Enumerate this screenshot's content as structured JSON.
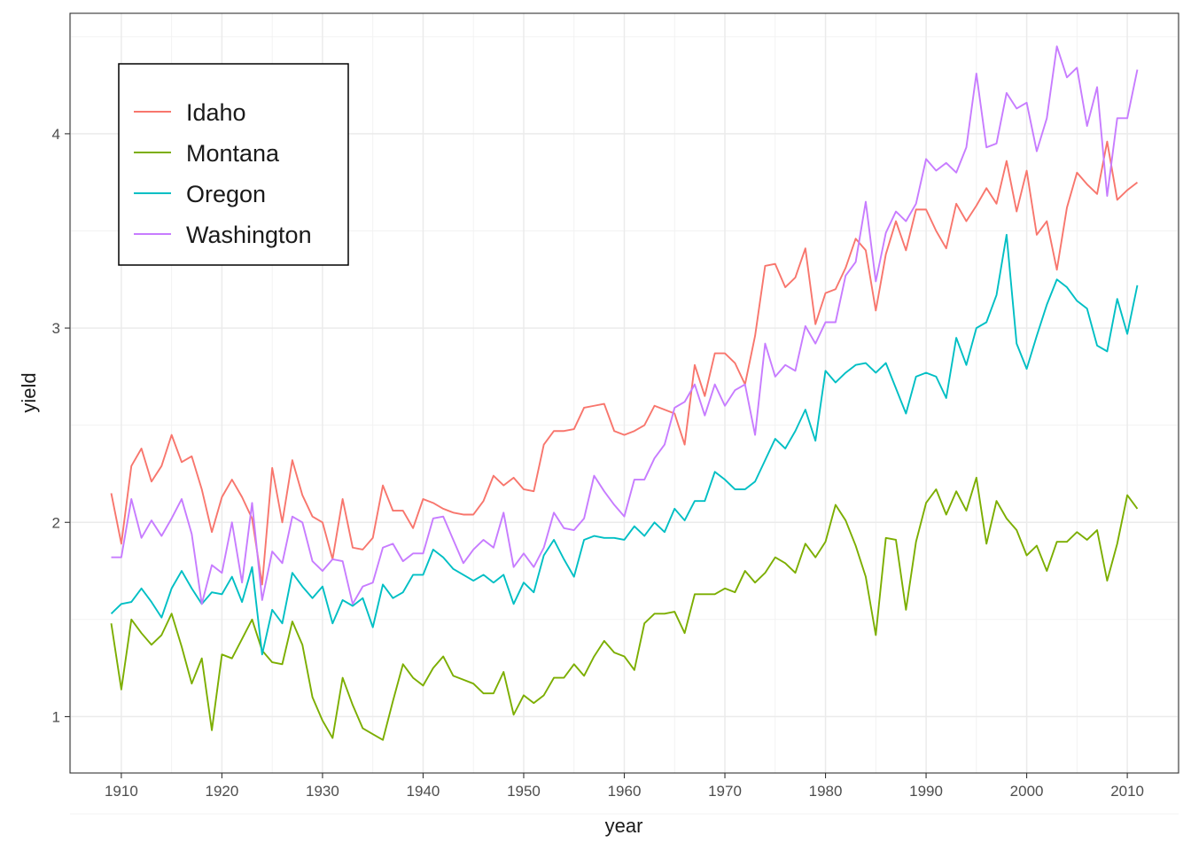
{
  "chart_data": {
    "type": "line",
    "xlabel": "year",
    "ylabel": "yield",
    "xlim": [
      1904.9,
      2015.1
    ],
    "ylim": [
      0.71,
      4.62
    ],
    "x_ticks": [
      1910,
      1920,
      1930,
      1940,
      1950,
      1960,
      1970,
      1980,
      1990,
      2000,
      2010
    ],
    "y_ticks": [
      1,
      2,
      3,
      4
    ],
    "grid": true,
    "legend_position": "top-left",
    "x": [
      1909,
      1910,
      1911,
      1912,
      1913,
      1914,
      1915,
      1916,
      1917,
      1918,
      1919,
      1920,
      1921,
      1922,
      1923,
      1924,
      1925,
      1926,
      1927,
      1928,
      1929,
      1930,
      1931,
      1932,
      1933,
      1934,
      1935,
      1936,
      1937,
      1938,
      1939,
      1940,
      1941,
      1942,
      1943,
      1944,
      1945,
      1946,
      1947,
      1948,
      1949,
      1950,
      1951,
      1952,
      1953,
      1954,
      1955,
      1956,
      1957,
      1958,
      1959,
      1960,
      1961,
      1962,
      1963,
      1964,
      1965,
      1966,
      1967,
      1968,
      1969,
      1970,
      1971,
      1972,
      1973,
      1974,
      1975,
      1976,
      1977,
      1978,
      1979,
      1980,
      1981,
      1982,
      1983,
      1984,
      1985,
      1986,
      1987,
      1988,
      1989,
      1990,
      1991,
      1992,
      1993,
      1994,
      1995,
      1996,
      1997,
      1998,
      1999,
      2000,
      2001,
      2002,
      2003,
      2004,
      2005,
      2006,
      2007,
      2008,
      2009,
      2010,
      2011
    ],
    "series": [
      {
        "name": "Idaho",
        "color": "#F8766D",
        "values": [
          2.15,
          1.89,
          2.29,
          2.38,
          2.21,
          2.29,
          2.45,
          2.31,
          2.34,
          2.17,
          1.95,
          2.13,
          2.22,
          2.13,
          2.02,
          1.68,
          2.28,
          2.0,
          2.32,
          2.14,
          2.03,
          2.0,
          1.81,
          2.12,
          1.87,
          1.86,
          1.92,
          2.19,
          2.06,
          2.06,
          1.97,
          2.12,
          2.1,
          2.07,
          2.05,
          2.04,
          2.04,
          2.11,
          2.24,
          2.19,
          2.23,
          2.17,
          2.16,
          2.4,
          2.47,
          2.47,
          2.48,
          2.59,
          2.6,
          2.61,
          2.47,
          2.45,
          2.47,
          2.5,
          2.6,
          2.58,
          2.56,
          2.4,
          2.81,
          2.65,
          2.87,
          2.87,
          2.82,
          2.71,
          2.96,
          3.32,
          3.33,
          3.21,
          3.26,
          3.41,
          3.02,
          3.18,
          3.2,
          3.31,
          3.46,
          3.4,
          3.09,
          3.38,
          3.55,
          3.4,
          3.61,
          3.61,
          3.5,
          3.41,
          3.64,
          3.55,
          3.63,
          3.72,
          3.64,
          3.86,
          3.6,
          3.81,
          3.48,
          3.55,
          3.3,
          3.62,
          3.8,
          3.74,
          3.69,
          3.96,
          3.66,
          3.71,
          3.75
        ]
      },
      {
        "name": "Montana",
        "color": "#7CAE00",
        "values": [
          1.48,
          1.14,
          1.5,
          1.43,
          1.37,
          1.42,
          1.53,
          1.36,
          1.17,
          1.3,
          0.93,
          1.32,
          1.3,
          1.4,
          1.5,
          1.34,
          1.28,
          1.27,
          1.49,
          1.37,
          1.1,
          0.98,
          0.89,
          1.2,
          1.06,
          0.94,
          0.91,
          0.88,
          1.08,
          1.27,
          1.2,
          1.16,
          1.25,
          1.31,
          1.21,
          1.19,
          1.17,
          1.12,
          1.12,
          1.23,
          1.01,
          1.11,
          1.07,
          1.11,
          1.2,
          1.2,
          1.27,
          1.21,
          1.31,
          1.39,
          1.33,
          1.31,
          1.24,
          1.48,
          1.53,
          1.53,
          1.54,
          1.43,
          1.63,
          1.63,
          1.63,
          1.66,
          1.64,
          1.75,
          1.69,
          1.74,
          1.82,
          1.79,
          1.74,
          1.89,
          1.82,
          1.9,
          2.09,
          2.01,
          1.88,
          1.72,
          1.42,
          1.92,
          1.91,
          1.55,
          1.9,
          2.1,
          2.17,
          2.04,
          2.16,
          2.06,
          2.23,
          1.89,
          2.11,
          2.02,
          1.96,
          1.83,
          1.88,
          1.75,
          1.9,
          1.9,
          1.95,
          1.91,
          1.96,
          1.7,
          1.89,
          2.14,
          2.07
        ]
      },
      {
        "name": "Oregon",
        "color": "#00BFC4",
        "values": [
          1.53,
          1.58,
          1.59,
          1.66,
          1.59,
          1.51,
          1.66,
          1.75,
          1.66,
          1.58,
          1.64,
          1.63,
          1.72,
          1.59,
          1.77,
          1.32,
          1.55,
          1.48,
          1.74,
          1.67,
          1.61,
          1.67,
          1.48,
          1.6,
          1.57,
          1.61,
          1.46,
          1.68,
          1.61,
          1.64,
          1.73,
          1.73,
          1.86,
          1.82,
          1.76,
          1.73,
          1.7,
          1.73,
          1.69,
          1.73,
          1.58,
          1.69,
          1.64,
          1.83,
          1.91,
          1.81,
          1.72,
          1.91,
          1.93,
          1.92,
          1.92,
          1.91,
          1.98,
          1.93,
          2.0,
          1.95,
          2.07,
          2.01,
          2.11,
          2.11,
          2.26,
          2.22,
          2.17,
          2.17,
          2.21,
          2.32,
          2.43,
          2.38,
          2.47,
          2.58,
          2.42,
          2.78,
          2.72,
          2.77,
          2.81,
          2.82,
          2.77,
          2.82,
          2.69,
          2.56,
          2.75,
          2.77,
          2.75,
          2.64,
          2.95,
          2.81,
          3.0,
          3.03,
          3.17,
          3.48,
          2.92,
          2.79,
          2.96,
          3.12,
          3.25,
          3.21,
          3.14,
          3.1,
          2.91,
          2.88,
          3.15,
          2.97,
          3.22
        ]
      },
      {
        "name": "Washington",
        "color": "#C77CFF",
        "values": [
          1.82,
          1.82,
          2.12,
          1.92,
          2.01,
          1.93,
          2.02,
          2.12,
          1.94,
          1.58,
          1.78,
          1.74,
          2.0,
          1.69,
          2.1,
          1.6,
          1.85,
          1.79,
          2.03,
          2.0,
          1.8,
          1.75,
          1.81,
          1.8,
          1.58,
          1.67,
          1.69,
          1.87,
          1.89,
          1.8,
          1.84,
          1.84,
          2.02,
          2.03,
          1.91,
          1.79,
          1.86,
          1.91,
          1.87,
          2.05,
          1.77,
          1.84,
          1.77,
          1.87,
          2.05,
          1.97,
          1.96,
          2.02,
          2.24,
          2.16,
          2.09,
          2.03,
          2.22,
          2.22,
          2.33,
          2.4,
          2.59,
          2.62,
          2.71,
          2.55,
          2.71,
          2.6,
          2.68,
          2.71,
          2.45,
          2.92,
          2.75,
          2.81,
          2.78,
          3.01,
          2.92,
          3.03,
          3.03,
          3.27,
          3.34,
          3.65,
          3.24,
          3.49,
          3.6,
          3.55,
          3.64,
          3.87,
          3.81,
          3.85,
          3.8,
          3.93,
          4.31,
          3.93,
          3.95,
          4.21,
          4.13,
          4.16,
          3.91,
          4.08,
          4.45,
          4.29,
          4.34,
          4.04,
          4.24,
          3.68,
          4.08,
          4.08,
          4.33
        ]
      }
    ]
  }
}
